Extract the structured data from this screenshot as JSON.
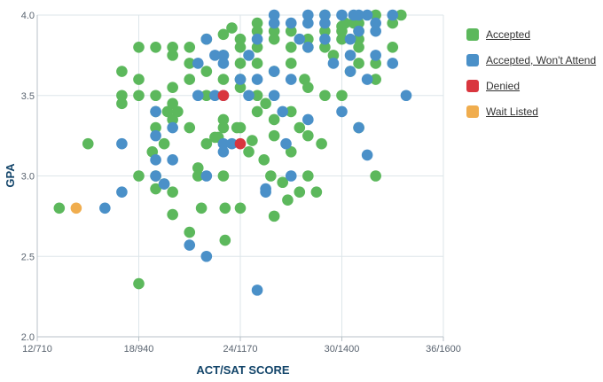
{
  "chart_data": {
    "type": "scatter",
    "xlabel": "ACT/SAT SCORE",
    "ylabel": "GPA",
    "xlim": [
      12,
      36
    ],
    "ylim": [
      2.0,
      4.0
    ],
    "x_ticks": [
      {
        "value": 12,
        "label": "12/710"
      },
      {
        "value": 18,
        "label": "18/940"
      },
      {
        "value": 24,
        "label": "24/1170"
      },
      {
        "value": 30,
        "label": "30/1400"
      },
      {
        "value": 36,
        "label": "36/1600"
      }
    ],
    "y_ticks": [
      {
        "value": 2.0,
        "label": "2.0"
      },
      {
        "value": 2.5,
        "label": "2.5"
      },
      {
        "value": 3.0,
        "label": "3.0"
      },
      {
        "value": 3.5,
        "label": "3.5"
      },
      {
        "value": 4.0,
        "label": "4.0"
      }
    ],
    "grid": true,
    "legend_position": "right",
    "series": [
      {
        "name": "Accepted",
        "color": "#5cb85c",
        "points": [
          [
            13.3,
            2.8
          ],
          [
            15,
            3.2
          ],
          [
            17,
            3.45
          ],
          [
            17,
            3.5
          ],
          [
            17,
            3.65
          ],
          [
            18,
            2.33
          ],
          [
            18,
            3.0
          ],
          [
            18,
            3.5
          ],
          [
            18,
            3.6
          ],
          [
            18,
            3.8
          ],
          [
            19,
            3.0
          ],
          [
            19,
            3.3
          ],
          [
            19,
            3.4
          ],
          [
            19,
            3.5
          ],
          [
            19,
            3.8
          ],
          [
            19,
            2.92
          ],
          [
            18.8,
            3.15
          ],
          [
            19.5,
            2.95
          ],
          [
            19.5,
            3.2
          ],
          [
            19.7,
            3.4
          ],
          [
            20,
            2.9
          ],
          [
            20,
            3.35
          ],
          [
            20,
            3.45
          ],
          [
            20,
            3.55
          ],
          [
            20,
            3.75
          ],
          [
            20,
            3.8
          ],
          [
            20,
            2.76
          ],
          [
            20.3,
            3.4
          ],
          [
            21,
            2.65
          ],
          [
            21,
            3.3
          ],
          [
            21,
            3.6
          ],
          [
            21,
            3.7
          ],
          [
            21,
            3.8
          ],
          [
            21.5,
            3.0
          ],
          [
            21.5,
            3.05
          ],
          [
            22,
            3.2
          ],
          [
            22,
            3.5
          ],
          [
            22,
            3.65
          ],
          [
            22,
            3.85
          ],
          [
            22.5,
            3.24
          ],
          [
            22.7,
            3.24
          ],
          [
            23,
            3.0
          ],
          [
            23,
            3.3
          ],
          [
            23,
            3.35
          ],
          [
            23,
            3.6
          ],
          [
            23,
            3.75
          ],
          [
            23,
            3.88
          ],
          [
            23.1,
            2.8
          ],
          [
            23.1,
            2.6
          ],
          [
            23.5,
            3.92
          ],
          [
            24,
            2.8
          ],
          [
            24,
            3.3
          ],
          [
            24,
            3.55
          ],
          [
            24,
            3.6
          ],
          [
            24,
            3.7
          ],
          [
            24,
            3.8
          ],
          [
            24,
            3.85
          ],
          [
            24.5,
            3.15
          ],
          [
            24.7,
            3.22
          ],
          [
            25,
            3.4
          ],
          [
            25,
            3.5
          ],
          [
            25,
            3.7
          ],
          [
            25,
            3.8
          ],
          [
            25,
            3.9
          ],
          [
            25,
            3.95
          ],
          [
            25.4,
            3.1
          ],
          [
            25.5,
            3.45
          ],
          [
            25.8,
            3.0
          ],
          [
            26,
            2.75
          ],
          [
            26,
            3.25
          ],
          [
            26,
            3.35
          ],
          [
            26,
            3.65
          ],
          [
            26,
            3.85
          ],
          [
            26,
            3.9
          ],
          [
            26.5,
            2.96
          ],
          [
            26.8,
            2.85
          ],
          [
            27,
            3.15
          ],
          [
            27,
            3.4
          ],
          [
            27,
            3.7
          ],
          [
            27,
            3.8
          ],
          [
            27,
            3.9
          ],
          [
            27.5,
            3.3
          ],
          [
            27.8,
            3.6
          ],
          [
            28,
            3.0
          ],
          [
            28,
            3.25
          ],
          [
            28,
            3.55
          ],
          [
            28,
            3.8
          ],
          [
            28,
            3.85
          ],
          [
            28.5,
            2.9
          ],
          [
            28.8,
            3.2
          ],
          [
            29,
            3.5
          ],
          [
            29,
            3.8
          ],
          [
            29,
            3.9
          ],
          [
            29,
            4.0
          ],
          [
            29.5,
            3.75
          ],
          [
            30,
            3.5
          ],
          [
            30,
            3.85
          ],
          [
            30,
            3.9
          ],
          [
            30,
            3.93
          ],
          [
            30.2,
            3.95
          ],
          [
            30.5,
            3.65
          ],
          [
            30.7,
            3.95
          ],
          [
            31,
            3.3
          ],
          [
            31,
            3.7
          ],
          [
            31,
            3.8
          ],
          [
            31,
            3.85
          ],
          [
            31,
            3.9
          ],
          [
            31,
            3.95
          ],
          [
            32,
            3.0
          ],
          [
            32,
            3.6
          ],
          [
            32,
            3.7
          ],
          [
            32,
            4.0
          ],
          [
            33,
            3.8
          ],
          [
            33,
            3.95
          ],
          [
            33.5,
            4.0
          ],
          [
            27.5,
            2.9
          ],
          [
            23.8,
            3.3
          ],
          [
            21.7,
            2.8
          ]
        ]
      },
      {
        "name": "Accepted, Won't Attend",
        "color": "#4a90c8",
        "points": [
          [
            16,
            2.8
          ],
          [
            17,
            2.9
          ],
          [
            17,
            3.2
          ],
          [
            19,
            3.0
          ],
          [
            19,
            3.1
          ],
          [
            19,
            3.25
          ],
          [
            19,
            3.4
          ],
          [
            19.5,
            2.95
          ],
          [
            20,
            3.1
          ],
          [
            20,
            3.3
          ],
          [
            21,
            2.57
          ],
          [
            21.5,
            3.5
          ],
          [
            21.5,
            3.7
          ],
          [
            22,
            2.5
          ],
          [
            22,
            3.0
          ],
          [
            22,
            3.85
          ],
          [
            22.5,
            3.5
          ],
          [
            22.5,
            3.75
          ],
          [
            23,
            3.15
          ],
          [
            23,
            3.2
          ],
          [
            23,
            3.5
          ],
          [
            23,
            3.7
          ],
          [
            23,
            3.75
          ],
          [
            23.5,
            3.2
          ],
          [
            24,
            3.6
          ],
          [
            24.5,
            3.5
          ],
          [
            24.5,
            3.75
          ],
          [
            25,
            2.29
          ],
          [
            25,
            3.6
          ],
          [
            25,
            3.85
          ],
          [
            25.5,
            2.9
          ],
          [
            25.5,
            2.92
          ],
          [
            26,
            3.5
          ],
          [
            26,
            3.65
          ],
          [
            26,
            3.95
          ],
          [
            26,
            4.0
          ],
          [
            26.5,
            3.4
          ],
          [
            27,
            3.0
          ],
          [
            27,
            3.6
          ],
          [
            27,
            3.95
          ],
          [
            27.5,
            3.85
          ],
          [
            28,
            3.8
          ],
          [
            28,
            4.0
          ],
          [
            28,
            3.95
          ],
          [
            29,
            3.85
          ],
          [
            29,
            3.95
          ],
          [
            29,
            4.0
          ],
          [
            29.5,
            3.7
          ],
          [
            30,
            3.4
          ],
          [
            30,
            4.0
          ],
          [
            30.5,
            3.65
          ],
          [
            30.5,
            3.85
          ],
          [
            30.7,
            4.0
          ],
          [
            31,
            3.3
          ],
          [
            31,
            3.9
          ],
          [
            31,
            4.0
          ],
          [
            31.5,
            3.13
          ],
          [
            31.5,
            3.6
          ],
          [
            31.5,
            4.0
          ],
          [
            32,
            3.75
          ],
          [
            32,
            3.9
          ],
          [
            32,
            3.95
          ],
          [
            33,
            3.7
          ],
          [
            33,
            4.0
          ],
          [
            33.8,
            3.5
          ],
          [
            30.5,
            3.75
          ],
          [
            26.7,
            3.2
          ],
          [
            28,
            3.35
          ]
        ]
      },
      {
        "name": "Denied",
        "color": "#d9363e",
        "points": [
          [
            23,
            3.5
          ],
          [
            24,
            3.2
          ]
        ]
      },
      {
        "name": "Wait Listed",
        "color": "#f0ad4e",
        "points": [
          [
            14.3,
            2.8
          ]
        ]
      }
    ]
  }
}
